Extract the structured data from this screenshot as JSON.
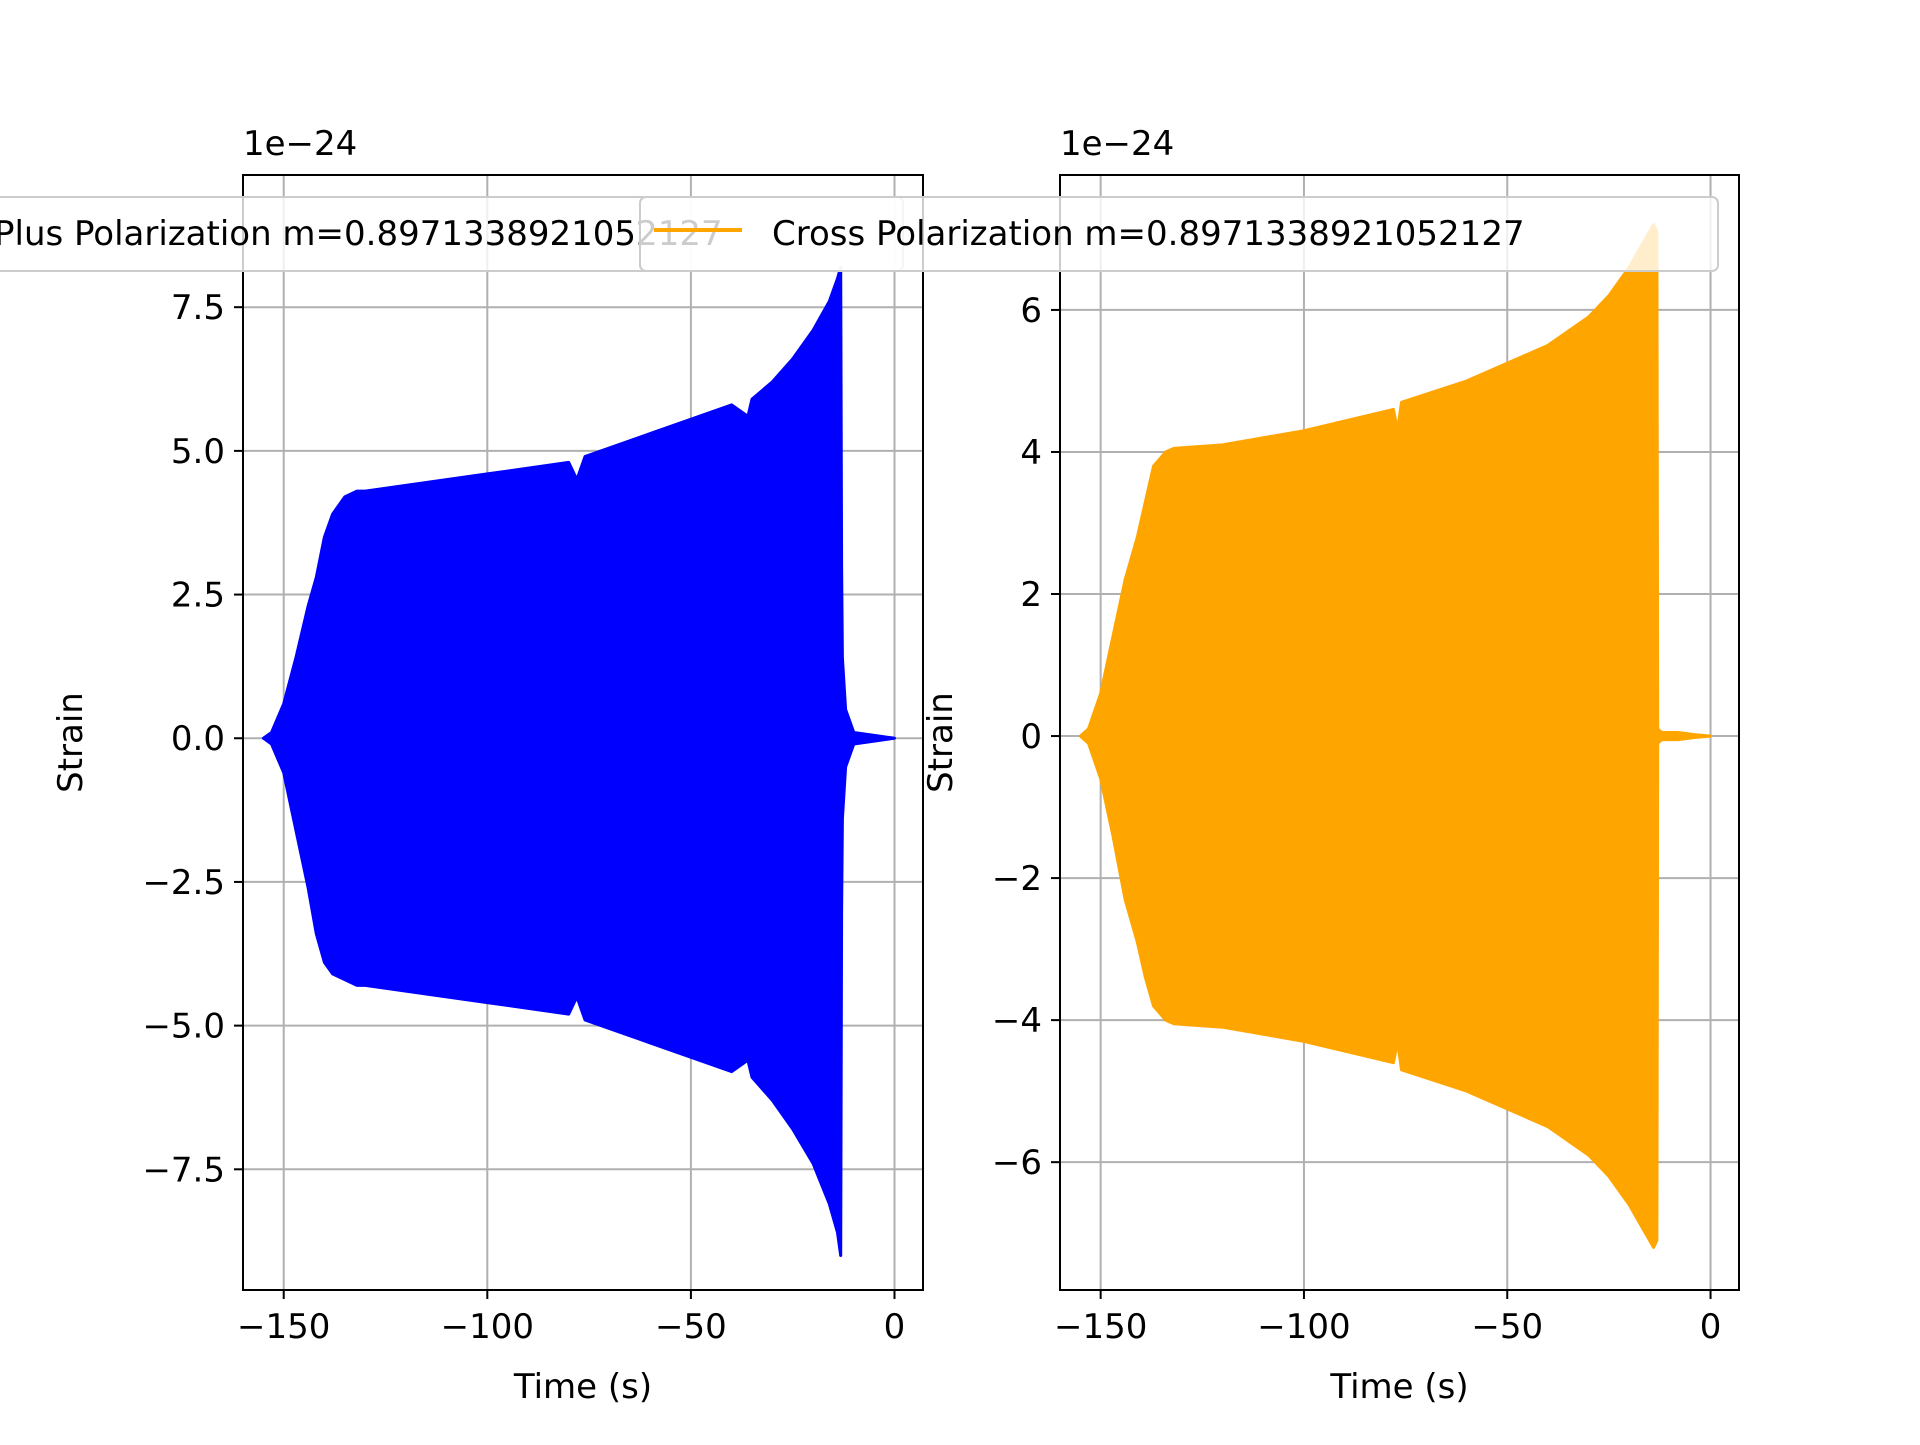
{
  "chart_data": [
    {
      "type": "area",
      "xlabel": "Time (s)",
      "ylabel": "Strain",
      "offset_text": "1e−24",
      "xlim": [
        -160,
        7
      ],
      "ylim": [
        -9.6,
        9.8
      ],
      "xticks": [
        -150,
        -100,
        -50,
        0
      ],
      "xtick_labels": [
        "−150",
        "−100",
        "−50",
        "0"
      ],
      "yticks": [
        -7.5,
        -5.0,
        -2.5,
        0.0,
        2.5,
        5.0,
        7.5
      ],
      "ytick_labels": [
        "−7.5",
        "−5.0",
        "−2.5",
        "0.0",
        "2.5",
        "5.0",
        "7.5"
      ],
      "grid": true,
      "legend_position": "top",
      "series": [
        {
          "name": "Plus Polarization m=0.8971338921052127",
          "color": "#0000ff",
          "description_points": {
            "x": [
              -155,
              -153,
              -150,
              -147,
              -144,
              -142,
              -140,
              -138,
              -135,
              -132,
              -130,
              -120,
              -100,
              -80,
              -78,
              -76,
              -60,
              -40,
              -36,
              -35,
              -30,
              -25,
              -20,
              -16,
              -14,
              -13.2,
              -13,
              -12.8,
              -12,
              -10,
              -5,
              0
            ],
            "upper": [
              0.0,
              0.1,
              0.6,
              1.4,
              2.3,
              2.8,
              3.5,
              3.9,
              4.2,
              4.3,
              4.3,
              4.4,
              4.6,
              4.8,
              4.5,
              4.9,
              5.3,
              5.8,
              5.6,
              5.9,
              6.2,
              6.6,
              7.1,
              7.6,
              8.0,
              8.2,
              3.0,
              1.4,
              0.5,
              0.1,
              0.05,
              0.0
            ],
            "lower": [
              0.0,
              -0.1,
              -0.6,
              -1.6,
              -2.6,
              -3.4,
              -3.9,
              -4.1,
              -4.2,
              -4.3,
              -4.3,
              -4.4,
              -4.6,
              -4.8,
              -4.5,
              -4.9,
              -5.3,
              -5.8,
              -5.6,
              -5.9,
              -6.3,
              -6.8,
              -7.4,
              -8.1,
              -8.6,
              -9.0,
              -3.0,
              -1.4,
              -0.5,
              -0.1,
              -0.05,
              0.0
            ]
          }
        }
      ]
    },
    {
      "type": "area",
      "xlabel": "Time (s)",
      "ylabel": "Strain",
      "offset_text": "1e−24",
      "xlim": [
        -160,
        7
      ],
      "ylim": [
        -7.8,
        7.9
      ],
      "xticks": [
        -150,
        -100,
        -50,
        0
      ],
      "xtick_labels": [
        "−150",
        "−100",
        "−50",
        "0"
      ],
      "yticks": [
        -6,
        -4,
        -2,
        0,
        2,
        4,
        6
      ],
      "ytick_labels": [
        "−6",
        "−4",
        "−2",
        "0",
        "2",
        "4",
        "6"
      ],
      "grid": true,
      "legend_position": "top",
      "series": [
        {
          "name": "Cross Polarization m=0.8971338921052127",
          "color": "#ffa500",
          "description_points": {
            "x": [
              -155,
              -153,
              -150,
              -147,
              -144,
              -141,
              -139,
              -137,
              -134,
              -132,
              -120,
              -100,
              -78,
              -77,
              -76,
              -60,
              -40,
              -30,
              -25,
              -20,
              -17,
              -14,
              -13.2,
              -13,
              -12,
              -8,
              -4,
              0
            ],
            "upper": [
              0.0,
              0.1,
              0.6,
              1.4,
              2.2,
              2.8,
              3.3,
              3.8,
              4.0,
              4.05,
              4.1,
              4.3,
              4.6,
              4.3,
              4.7,
              5.0,
              5.5,
              5.9,
              6.2,
              6.6,
              6.9,
              7.2,
              7.1,
              0.1,
              0.05,
              0.05,
              0.02,
              0.0
            ],
            "lower": [
              0.0,
              -0.1,
              -0.6,
              -1.4,
              -2.3,
              -2.9,
              -3.4,
              -3.8,
              -4.0,
              -4.05,
              -4.1,
              -4.3,
              -4.6,
              -4.3,
              -4.7,
              -5.0,
              -5.5,
              -5.9,
              -6.2,
              -6.6,
              -6.9,
              -7.2,
              -7.1,
              -0.1,
              -0.05,
              -0.05,
              -0.02,
              0.0
            ]
          }
        }
      ]
    }
  ]
}
